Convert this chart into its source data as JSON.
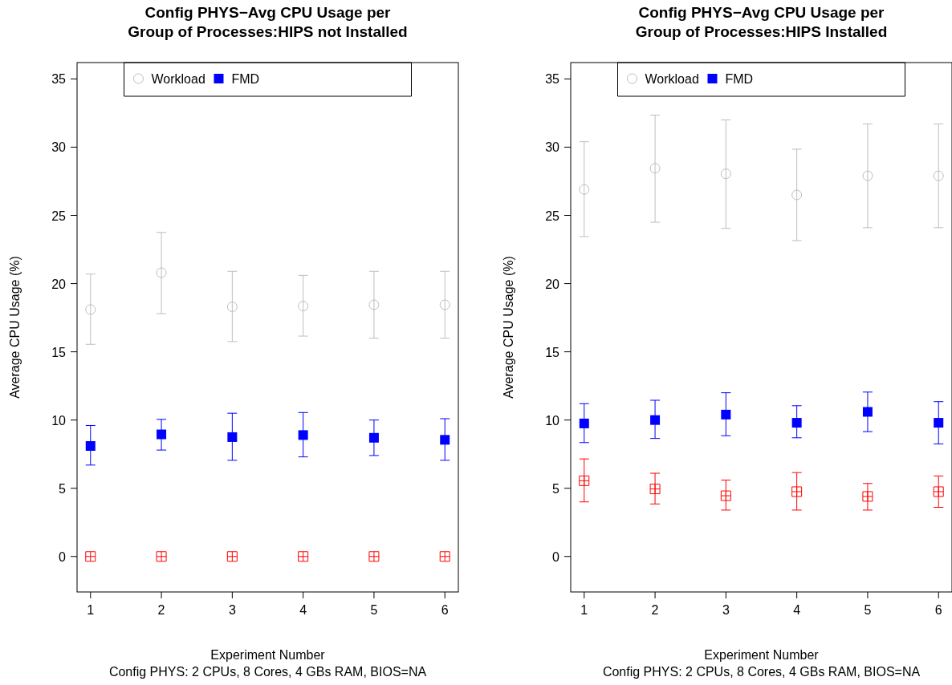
{
  "chart_data": [
    {
      "type": "scatter",
      "title": "Config PHYS−Avg CPU Usage per\nGroup of Processes:HIPS not Installed",
      "xlabel": "Experiment Number",
      "ylabel": "Average CPU Usage (%)",
      "annotations": [
        "Config PHYS: 2 CPUs, 8 Cores, 4 GBs RAM, BIOS=NA"
      ],
      "x": [
        1,
        2,
        3,
        4,
        5,
        6
      ],
      "xlim": [
        0.81,
        6.19
      ],
      "xticks": [
        1,
        2,
        3,
        4,
        5,
        6
      ],
      "ylim": [
        -2.6,
        36.2
      ],
      "yticks": [
        0,
        5,
        10,
        15,
        20,
        25,
        30,
        35
      ],
      "legend": "top",
      "grid": false,
      "series": [
        {
          "name": "Workload",
          "color": "#bebebe",
          "marker": "circle",
          "values": [
            18.1,
            20.8,
            18.3,
            18.35,
            18.45,
            18.45
          ],
          "errors": [
            [
              15.55,
              20.7
            ],
            [
              17.8,
              23.75
            ],
            [
              15.75,
              20.9
            ],
            [
              16.15,
              20.6
            ],
            [
              16.0,
              20.9
            ],
            [
              16.0,
              20.9
            ]
          ]
        },
        {
          "name": "FMD",
          "color": "#0000ff",
          "marker": "square",
          "values": [
            8.1,
            8.95,
            8.75,
            8.9,
            8.7,
            8.55
          ],
          "errors": [
            [
              6.7,
              9.6
            ],
            [
              7.8,
              10.05
            ],
            [
              7.05,
              10.5
            ],
            [
              7.3,
              10.55
            ],
            [
              7.4,
              10.0
            ],
            [
              7.05,
              10.1
            ]
          ]
        },
        {
          "color": "#ff0000",
          "marker": "cross",
          "values": [
            0,
            0,
            0,
            0,
            0,
            0
          ]
        }
      ]
    },
    {
      "type": "scatter",
      "title": "Config PHYS−Avg CPU Usage per\nGroup of Processes:HIPS Installed",
      "xlabel": "Experiment Number",
      "ylabel": "Average CPU Usage (%)",
      "annotations": [
        "Config PHYS: 2 CPUs, 8 Cores, 4 GBs RAM, BIOS=NA"
      ],
      "x": [
        1,
        2,
        3,
        4,
        5,
        6
      ],
      "xlim": [
        0.81,
        6.19
      ],
      "xticks": [
        1,
        2,
        3,
        4,
        5,
        6
      ],
      "ylim": [
        -2.6,
        36.2
      ],
      "yticks": [
        0,
        5,
        10,
        15,
        20,
        25,
        30,
        35
      ],
      "legend": "top",
      "grid": false,
      "series": [
        {
          "name": "Workload",
          "color": "#bebebe",
          "marker": "circle",
          "values": [
            26.9,
            28.45,
            28.05,
            26.5,
            27.9,
            27.9
          ],
          "errors": [
            [
              23.45,
              30.4
            ],
            [
              24.5,
              32.35
            ],
            [
              24.05,
              32.0
            ],
            [
              23.15,
              29.85
            ],
            [
              24.1,
              31.7
            ],
            [
              24.1,
              31.7
            ]
          ]
        },
        {
          "name": "FMD",
          "color": "#0000ff",
          "marker": "square",
          "values": [
            9.75,
            10.0,
            10.4,
            9.8,
            10.6,
            9.8
          ],
          "errors": [
            [
              8.35,
              11.2
            ],
            [
              8.65,
              11.45
            ],
            [
              8.85,
              12.0
            ],
            [
              8.7,
              11.05
            ],
            [
              9.15,
              12.05
            ],
            [
              8.25,
              11.35
            ]
          ]
        },
        {
          "color": "#ff0000",
          "marker": "cross",
          "values": [
            5.55,
            4.95,
            4.45,
            4.75,
            4.4,
            4.75
          ],
          "errors": [
            [
              4.0,
              7.15
            ],
            [
              3.85,
              6.1
            ],
            [
              3.4,
              5.6
            ],
            [
              3.4,
              6.15
            ],
            [
              3.4,
              5.35
            ],
            [
              3.6,
              5.9
            ]
          ]
        }
      ]
    }
  ]
}
